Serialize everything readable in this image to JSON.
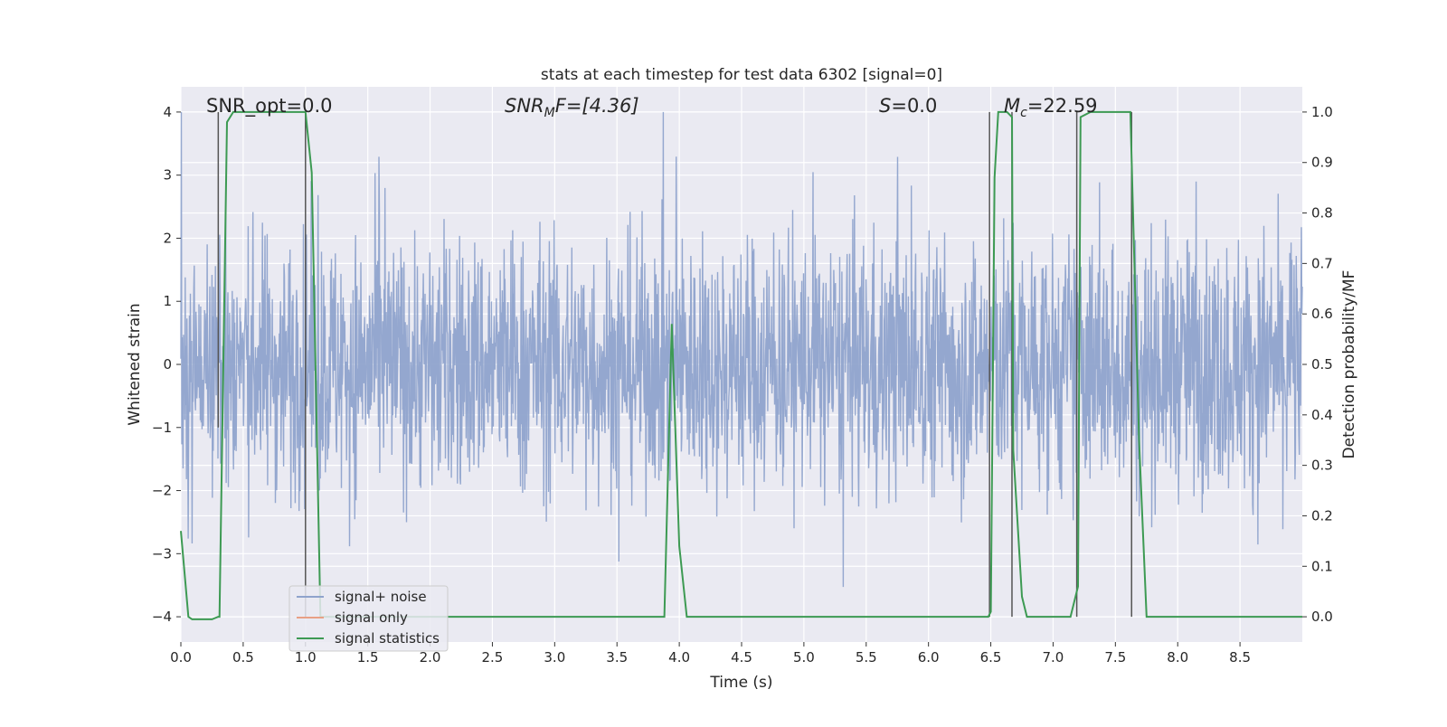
{
  "chart_data": {
    "type": "line",
    "title": "stats at each timestep for test data 6302 [signal=0]",
    "xlabel": "Time (s)",
    "ylabel": "Whitened strain",
    "y2label": "Detection probability/MF",
    "xlim": [
      0.0,
      9.0
    ],
    "ylim": [
      -4.4,
      4.4
    ],
    "y2lim": [
      -0.05,
      1.05
    ],
    "xticks": [
      "0.0",
      "0.5",
      "1.0",
      "1.5",
      "2.0",
      "2.5",
      "3.0",
      "3.5",
      "4.0",
      "4.5",
      "5.0",
      "5.5",
      "6.0",
      "6.5",
      "7.0",
      "7.5",
      "8.0",
      "8.5"
    ],
    "yticks": [
      "4",
      "3",
      "2",
      "1",
      "0",
      "−1",
      "−2",
      "−3",
      "−4"
    ],
    "y2ticks": [
      "1.0",
      "0.9",
      "0.8",
      "0.7",
      "0.6",
      "0.5",
      "0.4",
      "0.3",
      "0.2",
      "0.1",
      "0.0"
    ],
    "grid": true,
    "legend_position": "bottom-left",
    "annotations": {
      "snr_opt": "SNR_opt=0.0",
      "snr_mf_main": "SNR",
      "snr_mf_sub": "M",
      "snr_mf_rest": "F=[4.36]",
      "s_label": "S",
      "s_rest": "=0.0",
      "mc_main": "M",
      "mc_sub": "c",
      "mc_rest": "=22.59"
    },
    "series": [
      {
        "name": "signal+ noise",
        "color": "#8fa3cc",
        "style": "noise",
        "axis": "left",
        "x_range": [
          0.0,
          9.0
        ],
        "typical_amplitude": 1.6,
        "max_value": 4.0,
        "min_value": -4.0
      },
      {
        "name": "signal only",
        "color": "#e8a085",
        "axis": "left",
        "x": [
          0.0,
          9.0
        ],
        "y": [
          0.0,
          0.0
        ]
      },
      {
        "name": "signal statistics",
        "color": "#3d9a53",
        "axis": "right",
        "x": [
          0.0,
          0.06,
          0.09,
          0.15,
          0.2,
          0.25,
          0.3,
          0.31,
          0.37,
          0.42,
          0.5,
          0.6,
          0.75,
          0.95,
          1.0,
          1.05,
          1.12,
          1.2,
          1.5,
          2.0,
          3.0,
          3.88,
          3.94,
          4.0,
          4.06,
          4.2,
          5.0,
          6.0,
          6.48,
          6.5,
          6.53,
          6.56,
          6.63,
          6.67,
          6.68,
          6.75,
          6.79,
          6.85,
          7.1,
          7.14,
          7.2,
          7.22,
          7.3,
          7.5,
          7.62,
          7.69,
          7.75,
          7.8,
          8.0,
          9.0
        ],
        "y": [
          0.17,
          0.0,
          -0.005,
          -0.005,
          -0.005,
          -0.005,
          0.0,
          0.0,
          0.98,
          1.0,
          1.0,
          1.0,
          1.0,
          1.0,
          1.0,
          0.88,
          0.0,
          0.0,
          0.0,
          0.0,
          0.0,
          0.0,
          0.58,
          0.14,
          0.0,
          0.0,
          0.0,
          0.0,
          0.0,
          0.01,
          0.87,
          1.0,
          1.0,
          0.99,
          0.33,
          0.04,
          0.0,
          0.0,
          0.0,
          0.0,
          0.06,
          0.99,
          1.0,
          1.0,
          1.0,
          0.35,
          0.0,
          0.0,
          0.0,
          0.0
        ]
      }
    ],
    "vertical_markers": {
      "color": "#555555",
      "segments": [
        {
          "x": 0.3,
          "y_top": 4.0,
          "y_bottom": -1.0
        },
        {
          "x": 1.0,
          "y_top": 4.0,
          "y_bottom": -4.0
        },
        {
          "x": 6.49,
          "y_top": 4.0,
          "y_bottom": -4.0
        },
        {
          "x": 6.67,
          "y_top": 4.0,
          "y_bottom": -4.0
        },
        {
          "x": 7.19,
          "y_top": 4.0,
          "y_bottom": -4.0
        },
        {
          "x": 7.63,
          "y_top": 4.0,
          "y_bottom": -4.0
        }
      ]
    }
  }
}
